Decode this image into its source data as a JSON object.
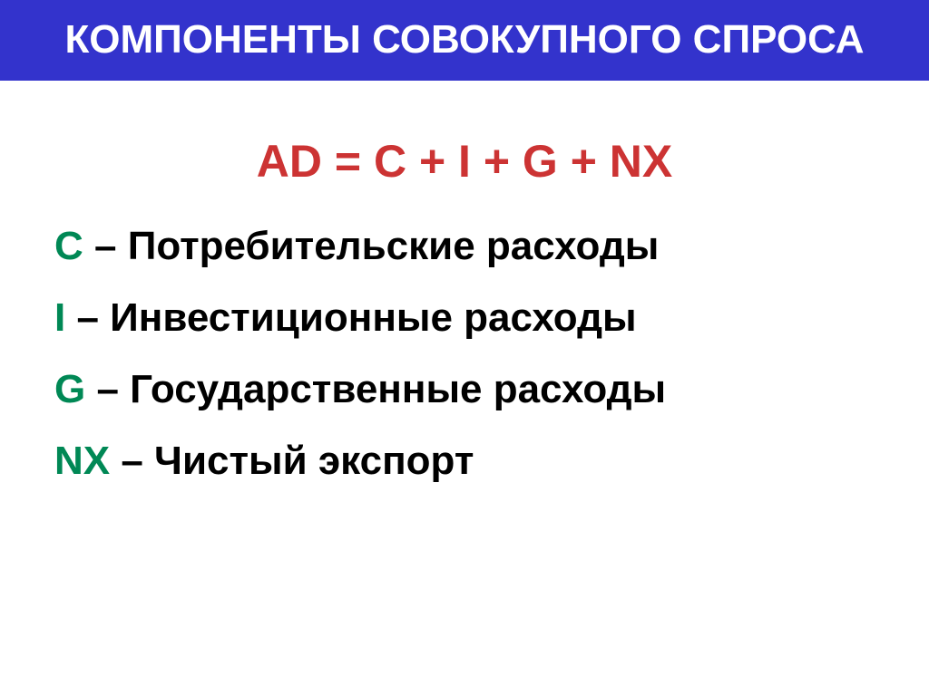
{
  "header": {
    "title": "КОМПОНЕНТЫ СОВОКУПНОГО СПРОСА",
    "background_color": "#3333cc",
    "text_color": "#ffffff",
    "fontsize": 44
  },
  "formula": {
    "text": "AD = C + I + G + NX",
    "color": "#cc3333",
    "fontsize": 50
  },
  "definitions": [
    {
      "symbol": "C",
      "text": " – Потребительские расходы"
    },
    {
      "symbol": "I",
      "text": " – Инвестиционные расходы"
    },
    {
      "symbol": "G",
      "text": " – Государственные расходы"
    },
    {
      "symbol": "NX",
      "text": " – Чистый экспорт"
    }
  ],
  "styling": {
    "symbol_color": "#008855",
    "text_color": "#000000",
    "definition_fontsize": 44,
    "background_color": "#ffffff"
  }
}
